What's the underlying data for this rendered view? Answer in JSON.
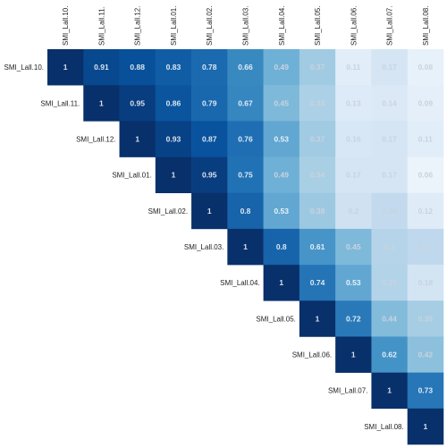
{
  "chart_data": {
    "type": "heatmap",
    "title": "",
    "xlabel": "",
    "ylabel": "",
    "x_labels": [
      "SMI_Lall.10.",
      "SMI_Lall.11.",
      "SMI_Lall.12.",
      "SMI_Lall.01.",
      "SMI_Lall.02.",
      "SMI_Lall.03.",
      "SMI_Lall.04.",
      "SMI_Lall.05.",
      "SMI_Lall.06.",
      "SMI_Lall.07.",
      "SMI_Lall.08."
    ],
    "y_labels": [
      "SMI_Lall.10.",
      "SMI_Lall.11.",
      "SMI_Lall.12.",
      "SMI_Lall.01.",
      "SMI_Lall.02.",
      "SMI_Lall.03.",
      "SMI_Lall.04.",
      "SMI_Lall.05.",
      "SMI_Lall.06.",
      "SMI_Lall.07.",
      "SMI_Lall.08."
    ],
    "layout": "upper-triangle",
    "color_scale": "Blues",
    "color_low": "#f7fbff",
    "color_high": "#08306b",
    "value_range": [
      0,
      1
    ],
    "values": [
      [
        1,
        0.91,
        0.88,
        0.83,
        0.78,
        0.66,
        0.49,
        0.37,
        0.11,
        0.17,
        0.08
      ],
      [
        null,
        1,
        0.95,
        0.86,
        0.79,
        0.67,
        0.45,
        0.33,
        0.13,
        0.14,
        0.09
      ],
      [
        null,
        null,
        1,
        0.93,
        0.87,
        0.76,
        0.53,
        0.37,
        0.16,
        0.17,
        0.11
      ],
      [
        null,
        null,
        null,
        1,
        0.95,
        0.75,
        0.49,
        0.34,
        0.17,
        0.17,
        0.06
      ],
      [
        null,
        null,
        null,
        null,
        1,
        0.8,
        0.53,
        0.38,
        0.2,
        0.26,
        0.12
      ],
      [
        null,
        null,
        null,
        null,
        null,
        1,
        0.8,
        0.61,
        0.45,
        0.3,
        0.27
      ],
      [
        null,
        null,
        null,
        null,
        null,
        null,
        1,
        0.74,
        0.53,
        0.31,
        0.18
      ],
      [
        null,
        null,
        null,
        null,
        null,
        null,
        null,
        1,
        0.72,
        0.44,
        0.35
      ],
      [
        null,
        null,
        null,
        null,
        null,
        null,
        null,
        null,
        1,
        0.62,
        0.42
      ],
      [
        null,
        null,
        null,
        null,
        null,
        null,
        null,
        null,
        null,
        1,
        0.73
      ],
      [
        null,
        null,
        null,
        null,
        null,
        null,
        null,
        null,
        null,
        null,
        1
      ]
    ]
  }
}
